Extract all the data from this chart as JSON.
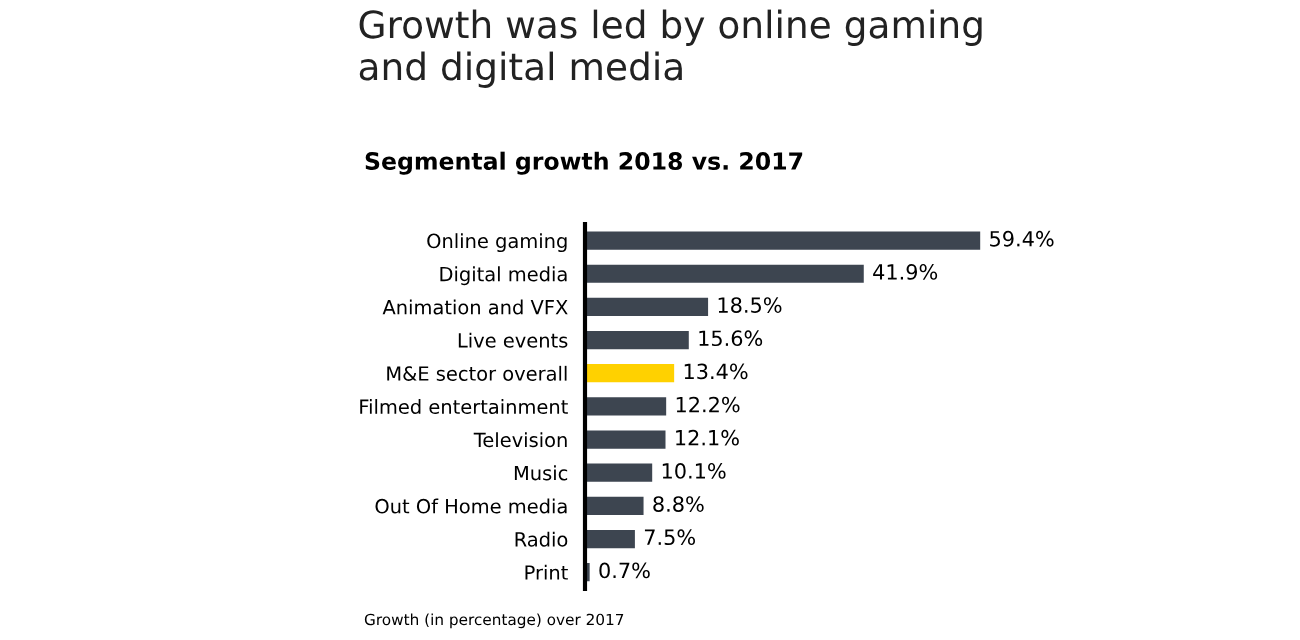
{
  "chart_data": {
    "type": "bar",
    "orientation": "horizontal",
    "title": "Growth was led by online gaming\nand digital media",
    "subtitle": "Segmental growth 2018 vs. 2017",
    "categories": [
      "Online gaming",
      "Digital media",
      "Animation and VFX",
      "Live events",
      "M&E sector overall",
      "Filmed entertainment",
      "Television",
      "Music",
      "Out Of Home media",
      "Radio",
      "Print"
    ],
    "values": [
      59.4,
      41.9,
      18.5,
      15.6,
      13.4,
      12.2,
      12.1,
      10.1,
      8.8,
      7.5,
      0.7
    ],
    "colors": [
      "#3d4550",
      "#3d4550",
      "#3d4550",
      "#3d4550",
      "#ffd100",
      "#3d4550",
      "#3d4550",
      "#3d4550",
      "#3d4550",
      "#3d4550",
      "#3d4550"
    ],
    "value_labels": [
      "59.4%",
      "41.9%",
      "18.5%",
      "15.6%",
      "13.4%",
      "12.2%",
      "12.1%",
      "10.1%",
      "8.8%",
      "7.5%",
      "0.7%"
    ],
    "tick_labels": "y",
    "grid": false,
    "legend": false,
    "annotations": [
      "Growth (in percentage) over 2017"
    ]
  }
}
